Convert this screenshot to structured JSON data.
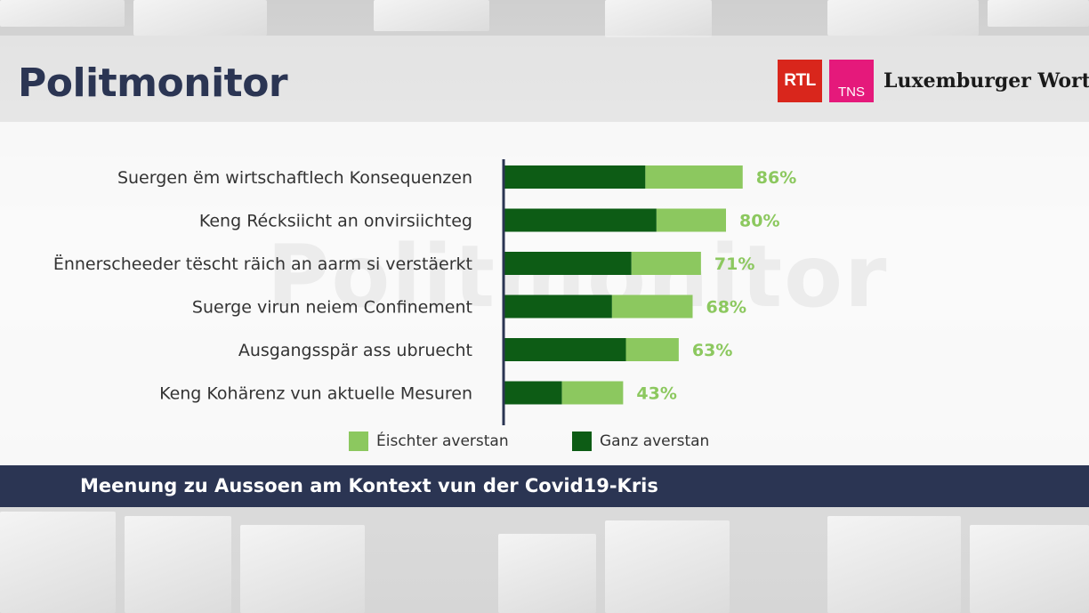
{
  "header": {
    "title": "Politmonitor",
    "logos": {
      "rtl": "RTL",
      "tns": "TNS",
      "lw": "Luxemburger Wort"
    },
    "watermark": "Politmonitor"
  },
  "chart_data": {
    "type": "bar",
    "stacked": true,
    "orientation": "horizontal",
    "categories": [
      "Suergen ëm wirtschaftlech Konsequenzen",
      "Keng Récksiicht an onvirsiichteg",
      "Ënnerscheeder tëscht räich an aarm si verstäerkt",
      "Suerge virun neiem Confinement",
      "Ausgangsspär ass ubruecht",
      "Keng Kohärenz vun aktuelle Mesuren"
    ],
    "series": [
      {
        "name": "Ganz averstan",
        "color": "#0d5c15",
        "values": [
          51,
          55,
          46,
          39,
          44,
          21
        ]
      },
      {
        "name": "Éischter averstan",
        "color": "#8cc85f",
        "values": [
          35,
          25,
          25,
          29,
          19,
          22
        ]
      }
    ],
    "totals": [
      86,
      80,
      71,
      68,
      63,
      43
    ],
    "total_labels": [
      "86%",
      "80%",
      "71%",
      "68%",
      "63%",
      "43%"
    ],
    "xlim": [
      0,
      100
    ],
    "legend": [
      {
        "label": "Éischter averstan",
        "color": "#8cc85f"
      },
      {
        "label": "Ganz averstan",
        "color": "#0d5c15"
      }
    ],
    "axis_color": "#2b3553"
  },
  "footer": {
    "caption": "Meenung zu Aussoen am Kontext vun der Covid19-Kris"
  }
}
